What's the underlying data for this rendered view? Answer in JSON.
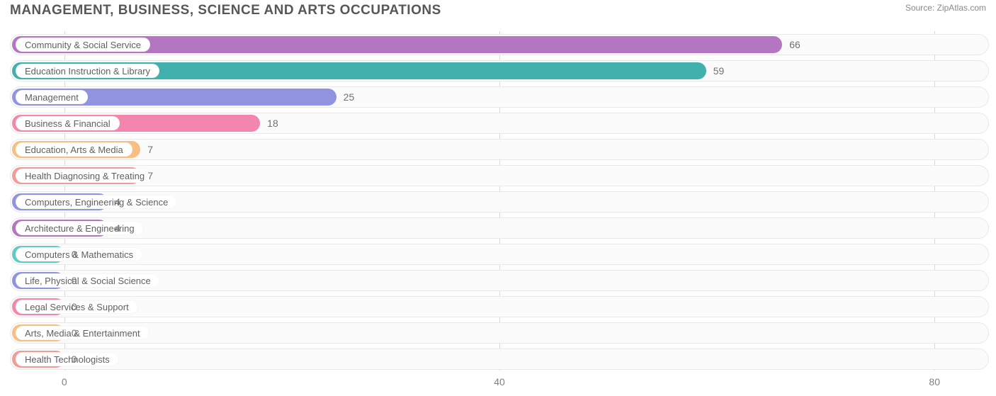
{
  "title": "MANAGEMENT, BUSINESS, SCIENCE AND ARTS OCCUPATIONS",
  "source_label": "Source:",
  "source_site": "ZipAtlas.com",
  "chart": {
    "type": "bar-horizontal",
    "xmin": -5,
    "xmax": 85,
    "xticks": [
      0,
      40,
      80
    ],
    "gridline_color": "#d9d9d9",
    "track_bg": "#fbfbfb",
    "track_border": "#e8e8e8",
    "title_color": "#575757",
    "axis_label_color": "#808080",
    "value_label_color": "#707070",
    "pill_text_color": "#606060",
    "title_fontsize": 19,
    "axis_fontsize": 14,
    "label_fontsize": 13,
    "colors": [
      "#b576c1",
      "#40b1ad",
      "#8f93e0",
      "#f286ac",
      "#f7bf82",
      "#f09c97",
      "#8f93e0",
      "#b576c1",
      "#5fcbc6",
      "#8f93e0",
      "#f286ac",
      "#f7bf82",
      "#f09c97"
    ],
    "rows": [
      {
        "label": "Community & Social Service",
        "value": 66
      },
      {
        "label": "Education Instruction & Library",
        "value": 59
      },
      {
        "label": "Management",
        "value": 25
      },
      {
        "label": "Business & Financial",
        "value": 18
      },
      {
        "label": "Education, Arts & Media",
        "value": 7
      },
      {
        "label": "Health Diagnosing & Treating",
        "value": 7
      },
      {
        "label": "Computers, Engineering & Science",
        "value": 4
      },
      {
        "label": "Architecture & Engineering",
        "value": 4
      },
      {
        "label": "Computers & Mathematics",
        "value": 0
      },
      {
        "label": "Life, Physical & Social Science",
        "value": 0
      },
      {
        "label": "Legal Services & Support",
        "value": 0
      },
      {
        "label": "Arts, Media & Entertainment",
        "value": 0
      },
      {
        "label": "Health Technologists",
        "value": 0
      }
    ]
  }
}
